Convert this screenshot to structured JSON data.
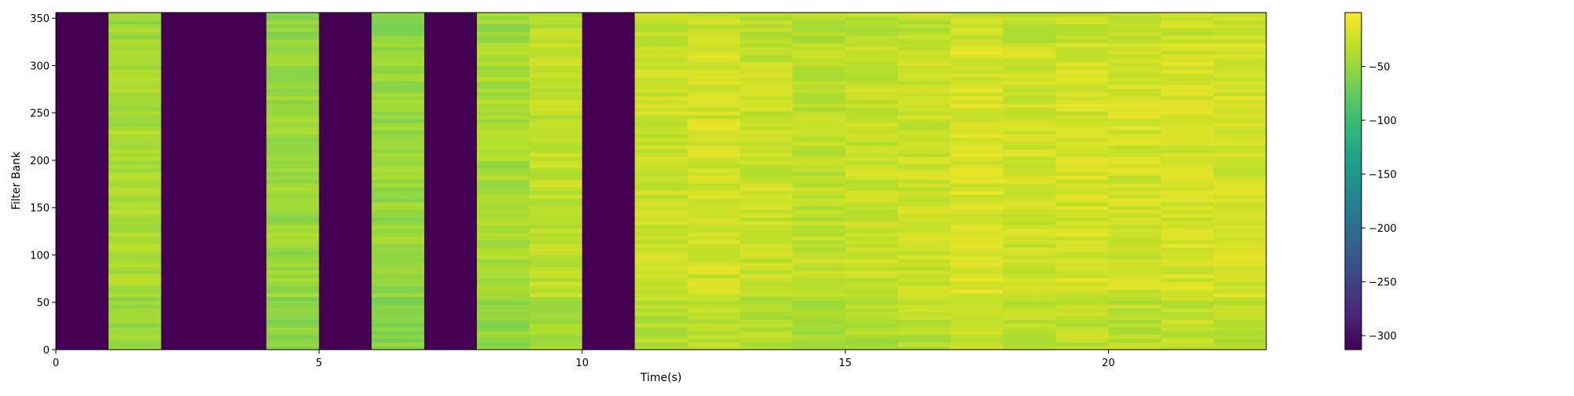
{
  "chart_data": {
    "type": "heatmap",
    "title": "",
    "xlabel": "Time(s)",
    "ylabel": "Filter Bank",
    "xlim": [
      0,
      23
    ],
    "ylim": [
      0,
      356
    ],
    "x_ticks": [
      0,
      5,
      10,
      15,
      20
    ],
    "y_ticks": [
      0,
      50,
      100,
      150,
      200,
      250,
      300,
      350
    ],
    "colormap": "viridis",
    "colorbar": {
      "ticks": [
        -50,
        -100,
        -150,
        -200,
        -250,
        -300
      ],
      "tick_labels": [
        "−50",
        "−100",
        "−150",
        "−200",
        "−250",
        "−300"
      ],
      "range": [
        -313,
        0
      ]
    },
    "colors": {
      "silent": "#440154",
      "viridis": [
        "#440154",
        "#482878",
        "#3e4989",
        "#31688e",
        "#26828e",
        "#1f9e89",
        "#35b779",
        "#6ece58",
        "#b5de2b",
        "#fde725"
      ]
    },
    "time_segments": [
      {
        "t": 0,
        "level_db": -313,
        "silent": true
      },
      {
        "t": 1,
        "level_db": -40
      },
      {
        "t": 2,
        "level_db": -313,
        "silent": true
      },
      {
        "t": 3,
        "level_db": -313,
        "silent": true
      },
      {
        "t": 4,
        "level_db": -48
      },
      {
        "t": 5,
        "level_db": -313,
        "silent": true
      },
      {
        "t": 6,
        "level_db": -50
      },
      {
        "t": 7,
        "level_db": -313,
        "silent": true
      },
      {
        "t": 8,
        "level_db": -42
      },
      {
        "t": 9,
        "level_db": -30
      },
      {
        "t": 10,
        "level_db": -313,
        "silent": true
      },
      {
        "t": 11,
        "level_db": -25
      },
      {
        "t": 12,
        "level_db": -22
      },
      {
        "t": 13,
        "level_db": -26
      },
      {
        "t": 14,
        "level_db": -30
      },
      {
        "t": 15,
        "level_db": -27
      },
      {
        "t": 16,
        "level_db": -25
      },
      {
        "t": 17,
        "level_db": -18
      },
      {
        "t": 18,
        "level_db": -24
      },
      {
        "t": 19,
        "level_db": -20
      },
      {
        "t": 20,
        "level_db": -22
      },
      {
        "t": 21,
        "level_db": -20
      },
      {
        "t": 22,
        "level_db": -21
      }
    ]
  }
}
